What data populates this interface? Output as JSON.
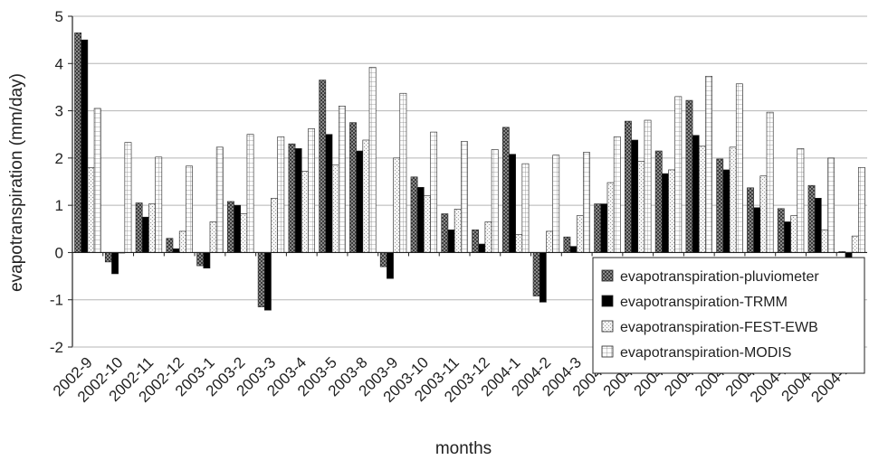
{
  "chart_data": {
    "type": "bar",
    "title": "",
    "xlabel": "months",
    "ylabel": "evapotranspiration (mm/day)",
    "ylim": [
      -2,
      5
    ],
    "yticks": [
      -2,
      -1,
      0,
      1,
      2,
      3,
      4,
      5
    ],
    "grid": "horizontal",
    "legend_position": "right",
    "categories": [
      "2002-9",
      "2002-10",
      "2002-11",
      "2002-12",
      "2003-1",
      "2003-2",
      "2003-3",
      "2003-4",
      "2003-5",
      "2003-8",
      "2003-9",
      "2003-10",
      "2003-11",
      "2003-12",
      "2004-1",
      "2004-2",
      "2004-3",
      "2004-4",
      "2004-5",
      "2004-6",
      "2004-7",
      "2004-8",
      "2004-9",
      "2004-10",
      "2004-11",
      "2004-12"
    ],
    "series": [
      {
        "name": "evapotranspiration-pluviometer",
        "pattern": "dark-checker",
        "values": [
          4.65,
          -0.2,
          1.05,
          0.3,
          -0.28,
          1.08,
          -1.15,
          2.3,
          3.65,
          2.75,
          -0.3,
          1.6,
          0.82,
          0.48,
          2.65,
          -0.92,
          0.33,
          1.03,
          2.78,
          2.15,
          3.22,
          1.98,
          1.37,
          0.93,
          1.42,
          0.02
        ]
      },
      {
        "name": "evapotranspiration-TRMM",
        "pattern": "solid-black",
        "values": [
          4.5,
          -0.45,
          0.75,
          0.08,
          -0.33,
          1.0,
          -1.22,
          2.2,
          2.5,
          2.15,
          -0.55,
          1.38,
          0.48,
          0.18,
          2.08,
          -1.05,
          0.13,
          1.03,
          2.38,
          1.67,
          2.48,
          1.75,
          0.95,
          0.65,
          1.15,
          -0.18
        ]
      },
      {
        "name": "evapotranspiration-FEST-EWB",
        "pattern": "light-dotted",
        "values": [
          1.8,
          0.0,
          1.03,
          0.45,
          0.65,
          0.82,
          1.15,
          1.72,
          1.85,
          2.38,
          2.0,
          1.2,
          0.92,
          0.65,
          0.38,
          0.45,
          0.78,
          1.48,
          1.93,
          1.75,
          2.25,
          2.23,
          1.62,
          0.78,
          0.48,
          0.35
        ]
      },
      {
        "name": "evapotranspiration-MODIS",
        "pattern": "grid",
        "values": [
          3.05,
          2.33,
          2.02,
          1.83,
          2.23,
          2.5,
          2.45,
          2.62,
          3.1,
          3.92,
          3.37,
          2.55,
          2.35,
          2.18,
          1.88,
          2.06,
          2.12,
          2.45,
          2.8,
          3.3,
          3.73,
          3.57,
          2.97,
          2.2,
          2.0,
          1.8
        ]
      }
    ]
  }
}
